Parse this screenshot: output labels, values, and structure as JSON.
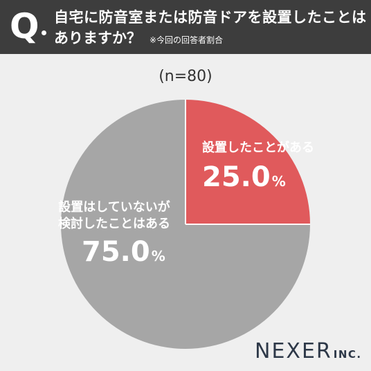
{
  "header": {
    "q_mark": "Q",
    "line1": "自宅に防音室または防音ドアを設置したことは",
    "line2": "ありますか？",
    "note": "※今回の回答者割合"
  },
  "sample_label": "(n=80)",
  "colors": {
    "header_bg": "#3d3d3d",
    "slice_yes": "#e05a5c",
    "slice_no": "#a6a6a6",
    "background": "#efefef",
    "logo": "#2d3848"
  },
  "chart_data": {
    "type": "pie",
    "categories": [
      "設置したことがある",
      "設置はしていないが検討したことはある"
    ],
    "values": [
      25.0,
      75.0
    ],
    "labels_display": [
      {
        "lines": [
          "設置したことがある"
        ],
        "value": "25.0",
        "unit": "%"
      },
      {
        "lines": [
          "設置はしていないが",
          "検討したことはある"
        ],
        "value": "75.0",
        "unit": "%"
      }
    ],
    "start": "top",
    "direction": "clockwise"
  },
  "logo": {
    "main": "NEXER",
    "suffix": "INC."
  }
}
